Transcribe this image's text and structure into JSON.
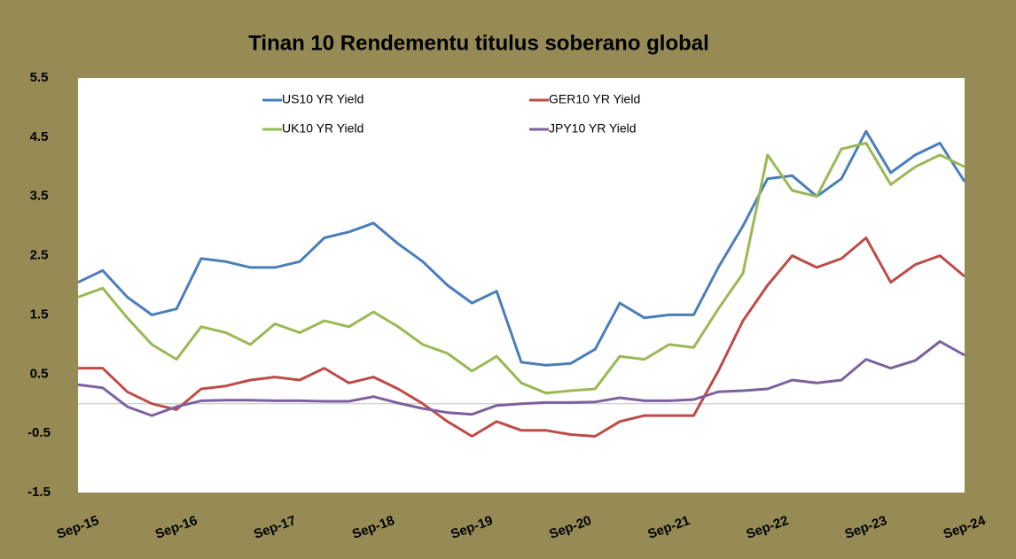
{
  "chart_data": {
    "type": "line",
    "title": "Tinan 10 Rendementu titulus soberano global",
    "x": [
      "2015-09",
      "2015-12",
      "2016-03",
      "2016-06",
      "2016-09",
      "2016-12",
      "2017-03",
      "2017-06",
      "2017-09",
      "2017-12",
      "2018-03",
      "2018-06",
      "2018-09",
      "2018-12",
      "2019-03",
      "2019-06",
      "2019-09",
      "2019-12",
      "2020-03",
      "2020-06",
      "2020-09",
      "2020-12",
      "2021-03",
      "2021-06",
      "2021-09",
      "2021-12",
      "2022-03",
      "2022-06",
      "2022-09",
      "2022-12",
      "2023-03",
      "2023-06",
      "2023-09",
      "2023-12",
      "2024-03",
      "2024-06",
      "2024-09"
    ],
    "series": [
      {
        "name": "US10 YR Yield",
        "color": "#4a7ebb",
        "values": [
          2.05,
          2.25,
          1.8,
          1.5,
          1.6,
          2.45,
          2.4,
          2.3,
          2.3,
          2.4,
          2.8,
          2.9,
          3.05,
          2.7,
          2.4,
          2.0,
          1.7,
          1.9,
          0.7,
          0.65,
          0.68,
          0.92,
          1.7,
          1.45,
          1.5,
          1.5,
          2.3,
          3.0,
          3.8,
          3.85,
          3.5,
          3.8,
          4.6,
          3.9,
          4.2,
          4.4,
          3.75
        ]
      },
      {
        "name": "GER10 YR Yield",
        "color": "#be4b48",
        "values": [
          0.6,
          0.6,
          0.2,
          0,
          -0.1,
          0.25,
          0.3,
          0.4,
          0.45,
          0.4,
          0.6,
          0.35,
          0.45,
          0.25,
          0,
          -0.3,
          -0.55,
          -0.3,
          -0.45,
          -0.45,
          -0.52,
          -0.55,
          -0.3,
          -0.2,
          -0.2,
          -0.2,
          0.55,
          1.4,
          2.0,
          2.5,
          2.3,
          2.45,
          2.8,
          2.05,
          2.35,
          2.5,
          2.15
        ]
      },
      {
        "name": "UK10 YR Yield",
        "color": "#98b954",
        "values": [
          1.8,
          1.95,
          1.45,
          1.0,
          0.75,
          1.3,
          1.2,
          1.0,
          1.35,
          1.2,
          1.4,
          1.3,
          1.55,
          1.3,
          1.0,
          0.85,
          0.55,
          0.8,
          0.35,
          0.18,
          0.22,
          0.25,
          0.8,
          0.75,
          1.0,
          0.95,
          1.6,
          2.2,
          4.2,
          3.6,
          3.5,
          4.3,
          4.4,
          3.7,
          4.0,
          4.2,
          4.0
        ]
      },
      {
        "name": "JPY10 YR Yield",
        "color": "#7d60a0",
        "values": [
          0.32,
          0.27,
          -0.05,
          -0.2,
          -0.05,
          0.05,
          0.06,
          0.06,
          0.05,
          0.05,
          0.04,
          0.04,
          0.12,
          0.01,
          -0.08,
          -0.15,
          -0.18,
          -0.03,
          0.0,
          0.02,
          0.02,
          0.03,
          0.1,
          0.05,
          0.05,
          0.07,
          0.2,
          0.22,
          0.25,
          0.4,
          0.35,
          0.4,
          0.75,
          0.6,
          0.73,
          1.05,
          0.82
        ]
      }
    ],
    "xlim": [
      "2015-09",
      "2024-09"
    ],
    "xticks": [
      {
        "value": "2015-09",
        "label": "Sep-15"
      },
      {
        "value": "2016-09",
        "label": "Sep-16"
      },
      {
        "value": "2017-09",
        "label": "Sep-17"
      },
      {
        "value": "2018-09",
        "label": "Sep-18"
      },
      {
        "value": "2019-09",
        "label": "Sep-19"
      },
      {
        "value": "2020-09",
        "label": "Sep-20"
      },
      {
        "value": "2021-09",
        "label": "Sep-21"
      },
      {
        "value": "2022-09",
        "label": "Sep-22"
      },
      {
        "value": "2023-09",
        "label": "Sep-23"
      },
      {
        "value": "2024-09",
        "label": "Sep-24"
      }
    ],
    "ylim": [
      -1.5,
      5.5
    ],
    "yticks": [
      5.5,
      4.5,
      3.5,
      2.5,
      1.5,
      0.5,
      -0.5,
      -1.5
    ],
    "grid": false
  }
}
